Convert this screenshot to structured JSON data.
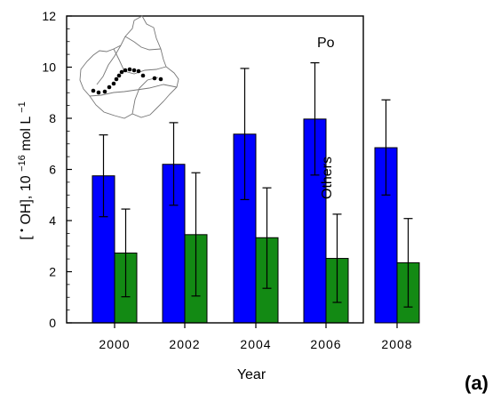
{
  "chart_data": {
    "type": "bar",
    "title": "",
    "xlabel": "Year",
    "ylabel": {
      "prefix": "[",
      "superscript_dot": "•",
      "species": "OH], 10",
      "exponent": "−16",
      "unit": " mol L",
      "unit_exponent": "−1"
    },
    "categories": [
      "2000",
      "2002",
      "2004",
      "2006",
      "2008"
    ],
    "ylim": [
      0,
      12
    ],
    "y_ticks": [
      0,
      2,
      4,
      6,
      8,
      10,
      12
    ],
    "series": [
      {
        "name": "Po",
        "color": "#0000ff",
        "values": [
          5.75,
          6.2,
          7.38,
          7.97,
          6.85
        ],
        "err_low": [
          4.15,
          4.6,
          4.82,
          5.78,
          5.0
        ],
        "err_high": [
          7.35,
          7.83,
          9.95,
          10.17,
          8.72
        ]
      },
      {
        "name": "Others",
        "color": "#138a14",
        "values": [
          2.73,
          3.45,
          3.33,
          2.52,
          2.35
        ],
        "err_low": [
          1.02,
          1.05,
          1.35,
          0.8,
          0.62
        ],
        "err_high": [
          4.45,
          5.87,
          5.28,
          4.25,
          4.08
        ]
      }
    ],
    "grid": false,
    "legend": "direct labels near Po and Others bars",
    "inset": "map of the Po river basin with sampling points",
    "panel_label": "(a)"
  }
}
